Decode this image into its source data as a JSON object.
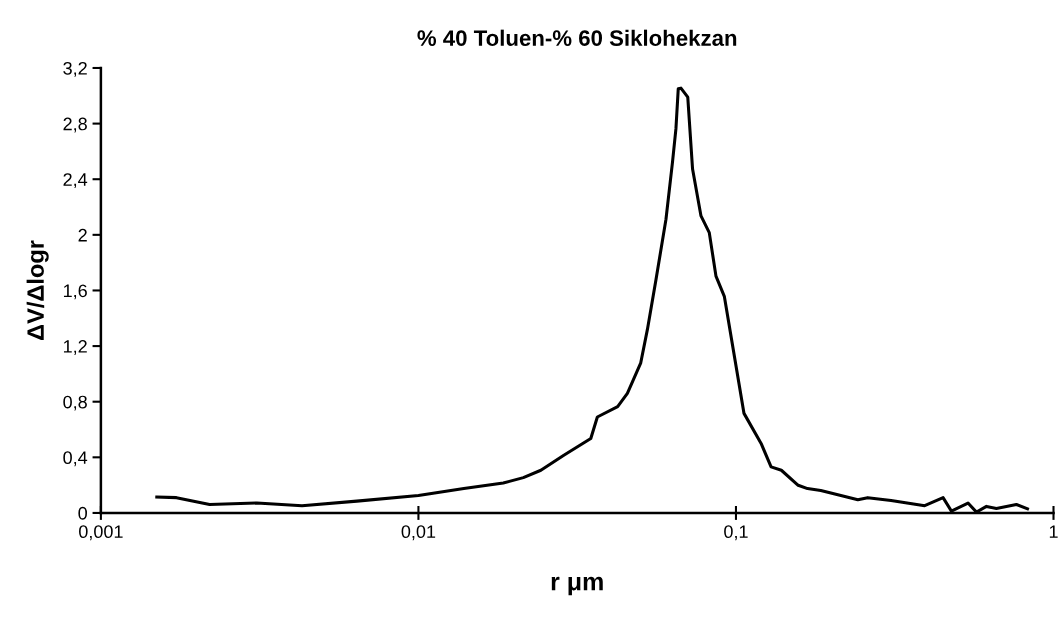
{
  "chart_data": {
    "type": "line",
    "title": "% 40 Toluen-% 60 Siklohekzan",
    "xlabel": "r μm",
    "ylabel": "ΔV/Δlogr",
    "log": "x",
    "grid": false,
    "marker": "none",
    "line_style": "solid",
    "xlim": [
      0.001,
      1
    ],
    "ylim": [
      0,
      3.2
    ],
    "xticks": [
      {
        "value": 0.001,
        "label": "0,001"
      },
      {
        "value": 0.01,
        "label": "0,01"
      },
      {
        "value": 0.1,
        "label": "0,1"
      },
      1
    ],
    "yticks": [
      0,
      {
        "value": 0.4,
        "label": "0,4"
      },
      {
        "value": 0.8,
        "label": "0,8"
      },
      {
        "value": 1.2,
        "label": "1,2"
      },
      {
        "value": 1.6,
        "label": "1,6"
      },
      2,
      {
        "value": 2.4,
        "label": "2,4"
      },
      {
        "value": 2.8,
        "label": "2,8"
      },
      {
        "value": 3.2,
        "label": "3,2"
      }
    ],
    "series": [
      {
        "color": "#000000",
        "x": [
          0.0015,
          0.00173,
          0.0022,
          0.0031,
          0.0043,
          0.0064,
          0.01,
          0.0139,
          0.0185,
          0.0214,
          0.0243,
          0.0287,
          0.0349,
          0.0366,
          0.0424,
          0.0455,
          0.0501,
          0.0526,
          0.056,
          0.0602,
          0.0631,
          0.0647,
          0.0658,
          0.0671,
          0.0705,
          0.073,
          0.0776,
          0.0824,
          0.0865,
          0.0919,
          0.106,
          0.12,
          0.129,
          0.139,
          0.157,
          0.168,
          0.185,
          0.214,
          0.242,
          0.26,
          0.308,
          0.393,
          0.449,
          0.477,
          0.538,
          0.572,
          0.615,
          0.661,
          0.764,
          0.828
        ],
        "values": [
          0.114,
          0.11,
          0.061,
          0.071,
          0.052,
          0.085,
          0.126,
          0.175,
          0.215,
          0.254,
          0.307,
          0.415,
          0.535,
          0.69,
          0.764,
          0.86,
          1.077,
          1.318,
          1.679,
          2.112,
          2.521,
          2.762,
          3.05,
          3.055,
          2.99,
          2.473,
          2.136,
          2.016,
          1.703,
          1.558,
          0.716,
          0.5,
          0.331,
          0.307,
          0.199,
          0.175,
          0.162,
          0.126,
          0.095,
          0.11,
          0.09,
          0.052,
          0.11,
          0.013,
          0.071,
          0.006,
          0.047,
          0.032,
          0.061,
          0.03
        ]
      }
    ]
  }
}
